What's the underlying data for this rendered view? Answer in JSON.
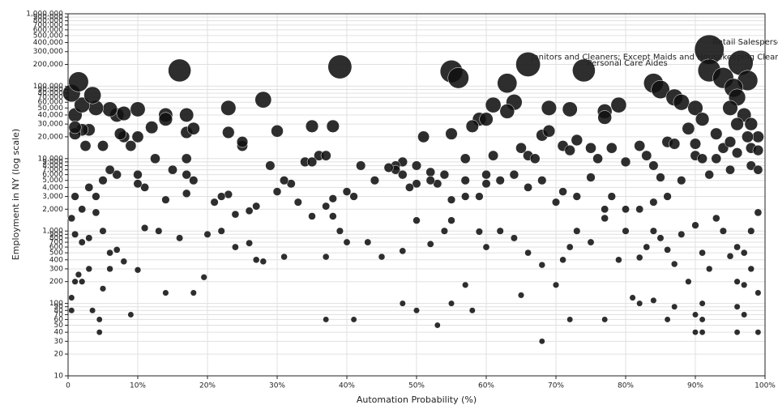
{
  "chart_data": {
    "type": "bubble",
    "xlabel": "Automation Probability (%)",
    "ylabel": "Employment in NY (log scale)",
    "log_y": true,
    "grid": true,
    "color": "#111111",
    "xlim": [
      0,
      100
    ],
    "xticks": [
      0,
      {
        "value": 10,
        "label": "10%"
      },
      {
        "value": 20,
        "label": "20%"
      },
      {
        "value": 30,
        "label": "30%"
      },
      {
        "value": 40,
        "label": "40%"
      },
      {
        "value": 50,
        "label": "50%"
      },
      {
        "value": 60,
        "label": "60%"
      },
      {
        "value": 70,
        "label": "70%"
      },
      {
        "value": 80,
        "label": "80%"
      },
      {
        "value": 90,
        "label": "90%"
      },
      {
        "value": 100,
        "label": "100%"
      }
    ],
    "ylim": [
      10,
      1000000
    ],
    "yticks": [
      10,
      20,
      30,
      40,
      50,
      60,
      70,
      80,
      90,
      100,
      200,
      300,
      400,
      500,
      600,
      700,
      800,
      900,
      {
        "value": 1000,
        "label": "1,000"
      },
      {
        "value": 2000,
        "label": "2,000"
      },
      {
        "value": 3000,
        "label": "3,000"
      },
      {
        "value": 4000,
        "label": "4,000"
      },
      {
        "value": 5000,
        "label": "5,000"
      },
      {
        "value": 6000,
        "label": "6,000"
      },
      {
        "value": 7000,
        "label": "7,000"
      },
      {
        "value": 8000,
        "label": "8,000"
      },
      {
        "value": 9000,
        "label": "9,000"
      },
      {
        "value": 10000,
        "label": "10,000"
      },
      {
        "value": 20000,
        "label": "20,000"
      },
      {
        "value": 30000,
        "label": "30,000"
      },
      {
        "value": 40000,
        "label": "40,000"
      },
      {
        "value": 50000,
        "label": "50,000"
      },
      {
        "value": 60000,
        "label": "60,000"
      },
      {
        "value": 70000,
        "label": "70,000"
      },
      {
        "value": 80000,
        "label": "80,000"
      },
      {
        "value": 90000,
        "label": "90,000"
      },
      {
        "value": 100000,
        "label": "100,000"
      },
      {
        "value": 200000,
        "label": "200,000"
      },
      {
        "value": 300000,
        "label": "300,000"
      },
      {
        "value": 400000,
        "label": "400,000"
      },
      {
        "value": 500000,
        "label": "500,000"
      },
      {
        "value": 600000,
        "label": "600,000"
      },
      {
        "value": 700000,
        "label": "700,000"
      },
      {
        "value": 800000,
        "label": "800,000"
      },
      {
        "value": 900000,
        "label": "900,000"
      },
      {
        "value": 1000000,
        "label": "1,000,000"
      }
    ],
    "x": [
      92,
      96.5,
      66,
      74,
      55,
      56,
      63,
      39,
      16,
      84,
      85,
      92,
      94,
      97.5,
      95.5,
      96,
      87,
      88,
      90,
      95,
      91,
      97,
      98,
      96,
      99,
      97.5,
      93,
      89,
      61,
      64,
      63,
      69,
      72,
      77,
      77,
      79,
      28,
      23,
      59,
      60,
      58,
      55,
      51,
      35,
      38,
      30,
      23,
      17,
      18,
      12,
      10,
      14,
      14,
      17,
      10,
      7,
      6,
      4,
      8,
      1,
      2,
      0.5,
      1.5,
      3.5,
      8,
      7.5,
      3,
      2,
      1,
      1,
      2.5,
      5,
      9,
      12.5,
      17,
      25,
      25,
      29,
      34,
      36,
      37,
      35,
      42,
      48,
      47,
      50,
      47,
      48,
      46,
      52,
      54,
      57,
      61,
      65,
      66,
      67,
      68,
      69,
      71,
      72,
      73,
      75,
      76,
      78,
      80,
      82,
      83,
      84,
      85,
      86,
      87,
      90,
      90,
      91,
      93,
      94,
      95,
      96,
      98,
      99,
      98,
      99,
      95,
      92,
      88,
      86,
      84,
      82,
      80,
      78,
      77,
      75,
      73,
      71,
      70,
      68,
      66,
      64,
      62,
      60,
      60,
      59,
      57,
      57,
      55,
      53,
      52,
      50,
      49,
      44,
      41,
      40,
      38,
      38,
      37,
      35,
      33,
      32,
      31,
      30,
      27,
      26,
      24,
      23,
      22,
      21,
      20,
      18,
      17,
      17,
      15,
      14,
      13,
      11,
      10,
      10,
      7,
      6,
      5,
      4,
      3,
      2,
      1,
      0.5,
      1,
      2,
      3,
      4,
      5,
      6,
      7,
      8,
      6,
      10,
      11,
      16,
      18,
      14,
      19.5,
      22,
      24,
      26,
      27,
      28,
      31,
      37,
      39,
      40,
      43,
      45,
      48,
      50,
      52,
      54,
      55,
      57,
      59,
      60,
      62,
      64,
      66,
      68,
      70,
      71,
      72,
      73,
      75,
      77,
      79,
      80,
      82,
      83,
      84,
      85,
      86,
      87,
      88,
      89,
      90,
      91,
      92,
      93,
      94,
      95,
      96,
      97,
      98,
      99,
      98,
      99,
      96,
      97,
      96,
      97,
      90,
      91,
      90,
      91,
      96,
      99,
      86,
      81,
      82,
      84,
      87,
      91,
      77,
      72,
      68,
      65,
      58,
      55,
      53,
      50,
      48,
      41,
      37,
      9,
      3.5,
      4.5,
      4.5,
      0.5,
      0.5,
      1,
      2,
      5,
      1.5,
      3
    ],
    "series": [
      {
        "values": [
          320000,
          210000,
          200000,
          165000,
          160000,
          130000,
          110000,
          185000,
          165000,
          110000,
          90000,
          165000,
          130000,
          120000,
          95000,
          70000,
          70000,
          60000,
          50000,
          50000,
          35000,
          40000,
          30000,
          30000,
          20000,
          20000,
          22000,
          26000,
          55000,
          60000,
          45000,
          50000,
          48000,
          45000,
          37000,
          55000,
          65000,
          50000,
          35000,
          35000,
          28000,
          22000,
          20000,
          28000,
          28000,
          24000,
          23000,
          23000,
          26000,
          27000,
          20000,
          40000,
          35000,
          40000,
          48000,
          40000,
          48000,
          50000,
          42000,
          40000,
          55000,
          80000,
          115000,
          75000,
          20000,
          22000,
          25000,
          25000,
          22000,
          27000,
          15000,
          15000,
          15000,
          10000,
          10000,
          15000,
          17000,
          8000,
          9000,
          11000,
          11000,
          9000,
          8000,
          9000,
          8000,
          8000,
          7000,
          6000,
          7500,
          6500,
          6000,
          10000,
          11000,
          14000,
          11000,
          10000,
          21000,
          24000,
          15000,
          13000,
          18000,
          14000,
          10000,
          14000,
          9000,
          15000,
          11000,
          8000,
          5500,
          17000,
          16000,
          16000,
          11000,
          10000,
          10000,
          14000,
          17000,
          12000,
          14000,
          13000,
          8000,
          7000,
          7000,
          6000,
          5000,
          3000,
          2500,
          2000,
          2000,
          3000,
          2000,
          5500,
          3000,
          3500,
          2500,
          5000,
          4000,
          6000,
          5000,
          4500,
          6000,
          3000,
          3000,
          5000,
          2700,
          4500,
          5000,
          4500,
          4000,
          5000,
          3000,
          3500,
          2800,
          1600,
          2200,
          1600,
          2500,
          4500,
          5000,
          3500,
          2200,
          1900,
          1700,
          3200,
          3000,
          2500,
          900,
          5000,
          3300,
          6000,
          7000,
          2700,
          1000,
          4000,
          6000,
          4500,
          6000,
          7000,
          5000,
          3000,
          4000,
          2000,
          3000,
          1500,
          900,
          700,
          800,
          1800,
          1000,
          500,
          550,
          380,
          300,
          290,
          1100,
          800,
          140,
          140,
          230,
          1000,
          600,
          680,
          400,
          380,
          440,
          440,
          1000,
          700,
          700,
          440,
          530,
          1400,
          660,
          1000,
          1400,
          180,
          980,
          600,
          1000,
          800,
          500,
          340,
          180,
          400,
          600,
          1000,
          700,
          1500,
          400,
          1000,
          430,
          600,
          1000,
          800,
          550,
          350,
          900,
          200,
          1200,
          500,
          300,
          1500,
          1000,
          450,
          600,
          500,
          1000,
          1800,
          300,
          140,
          200,
          180,
          90,
          70,
          70,
          60,
          40,
          40,
          40,
          40,
          60,
          120,
          100,
          110,
          90,
          100,
          60,
          60,
          30,
          130,
          80,
          100,
          50,
          80,
          100,
          60,
          60,
          70,
          80,
          60,
          40,
          80,
          120,
          200,
          200,
          160,
          250,
          300
        ]
      }
    ],
    "annotations": [
      {
        "text": "Retail Salespersons",
        "x": 92,
        "y": 320000
      },
      {
        "text": "Janitors and Cleaners; Except Maids and Housekeeping Cleaners",
        "x": 66,
        "y": 200000
      },
      {
        "text": "Personal Care Aides",
        "x": 74,
        "y": 165000
      }
    ]
  }
}
